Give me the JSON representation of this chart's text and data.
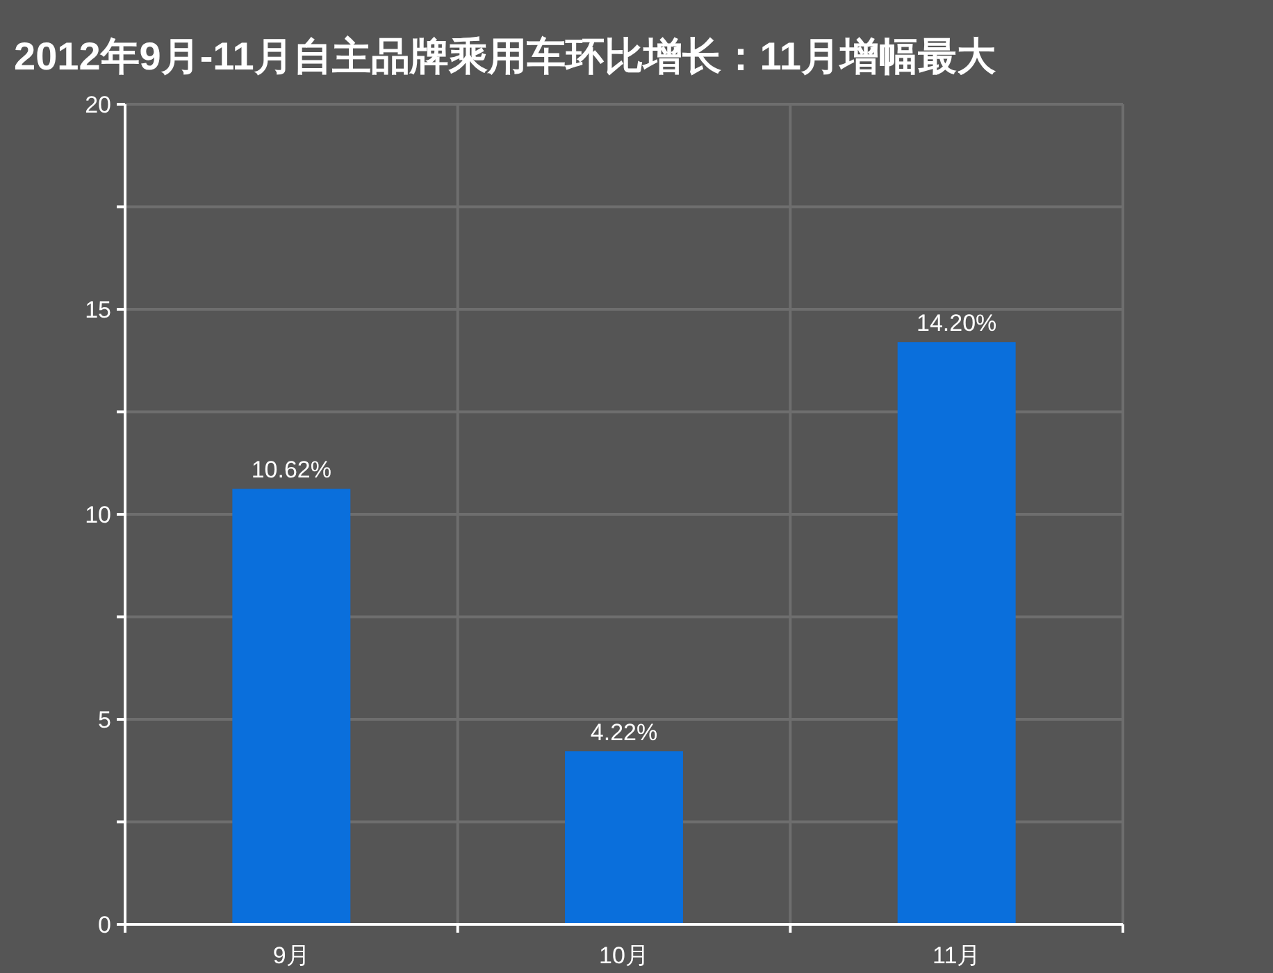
{
  "chart_data": {
    "type": "bar",
    "title": "2012年9月-11月自主品牌乘用车环比增长：11月增幅最大",
    "categories": [
      "9月",
      "10月",
      "11月"
    ],
    "values": [
      10.62,
      4.22,
      14.2
    ],
    "value_labels": [
      "10.62%",
      "4.22%",
      "14.20%"
    ],
    "color": "#0a6fdc",
    "ylim": [
      0,
      20
    ],
    "yticks": [
      0,
      {
        "value": 2.5,
        "label": null
      },
      5,
      {
        "value": 7.5,
        "label": null
      },
      10,
      {
        "value": 12.5,
        "label": null
      },
      15,
      {
        "value": 17.5,
        "label": null
      },
      20
    ],
    "grid": true
  }
}
